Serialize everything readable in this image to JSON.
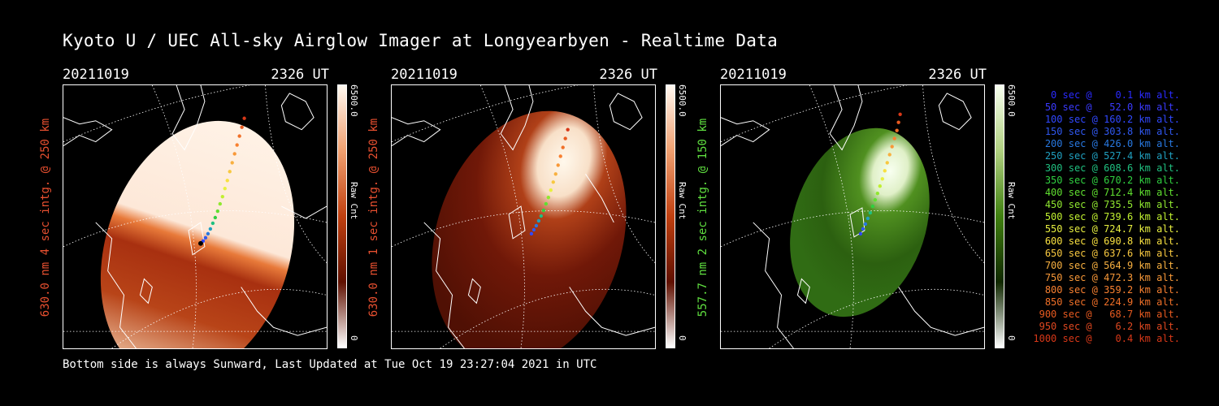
{
  "title": "Kyoto U / UEC All-sky Airglow Imager at Longyearbyen - Realtime Data",
  "footer": "Bottom side is always Sunward, Last Updated at Tue Oct 19 23:27:04 2021 in UTC",
  "panels": [
    {
      "date": "20211019",
      "time": "2326 UT",
      "ylabel": "630.0 nm 4 sec intg. @ 250 km",
      "ylabel_color": "#e85030",
      "cbar_max": "6500.0",
      "cbar_min": "0",
      "cbar_label": "Raw Cnt"
    },
    {
      "date": "20211019",
      "time": "2326 UT",
      "ylabel": "630.0 nm 1 sec intg. @ 250 km",
      "ylabel_color": "#e85030",
      "cbar_max": "6500.0",
      "cbar_min": "0",
      "cbar_label": "Raw Cnt"
    },
    {
      "date": "20211019",
      "time": "2326 UT",
      "ylabel": "557.7 nm 2 sec intg. @ 150 km",
      "ylabel_color": "#60e040",
      "cbar_max": "6500.0",
      "cbar_min": "0",
      "cbar_label": "Raw Cnt"
    }
  ],
  "legend": [
    {
      "text": "0 sec @    0.1 km alt.",
      "color": "#2a2aff"
    },
    {
      "text": "50 sec @   52.0 km alt.",
      "color": "#3a3aff"
    },
    {
      "text": "100 sec @ 160.2 km alt.",
      "color": "#3048ff"
    },
    {
      "text": "150 sec @ 303.8 km alt.",
      "color": "#3058f0"
    },
    {
      "text": "200 sec @ 426.0 km alt.",
      "color": "#2878e0"
    },
    {
      "text": "250 sec @ 527.4 km alt.",
      "color": "#20a0c0"
    },
    {
      "text": "300 sec @ 608.6 km alt.",
      "color": "#20c080"
    },
    {
      "text": "350 sec @ 670.2 km alt.",
      "color": "#30d040"
    },
    {
      "text": "400 sec @ 712.4 km alt.",
      "color": "#60e030"
    },
    {
      "text": "450 sec @ 735.5 km alt.",
      "color": "#90e830"
    },
    {
      "text": "500 sec @ 739.6 km alt.",
      "color": "#c0f030"
    },
    {
      "text": "550 sec @ 724.7 km alt.",
      "color": "#e8f040"
    },
    {
      "text": "600 sec @ 690.8 km alt.",
      "color": "#f8e040"
    },
    {
      "text": "650 sec @ 637.6 km alt.",
      "color": "#f8c840"
    },
    {
      "text": "700 sec @ 564.9 km alt.",
      "color": "#f8b040"
    },
    {
      "text": "750 sec @ 472.3 km alt.",
      "color": "#f89838"
    },
    {
      "text": "800 sec @ 359.2 km alt.",
      "color": "#f88030"
    },
    {
      "text": "850 sec @ 224.9 km alt.",
      "color": "#f07028"
    },
    {
      "text": "900 sec @   68.7 km alt.",
      "color": "#e85a20"
    },
    {
      "text": "950 sec @    6.2 km alt.",
      "color": "#e04820"
    },
    {
      "text": "1000 sec @    0.4 km alt.",
      "color": "#d83818"
    }
  ]
}
